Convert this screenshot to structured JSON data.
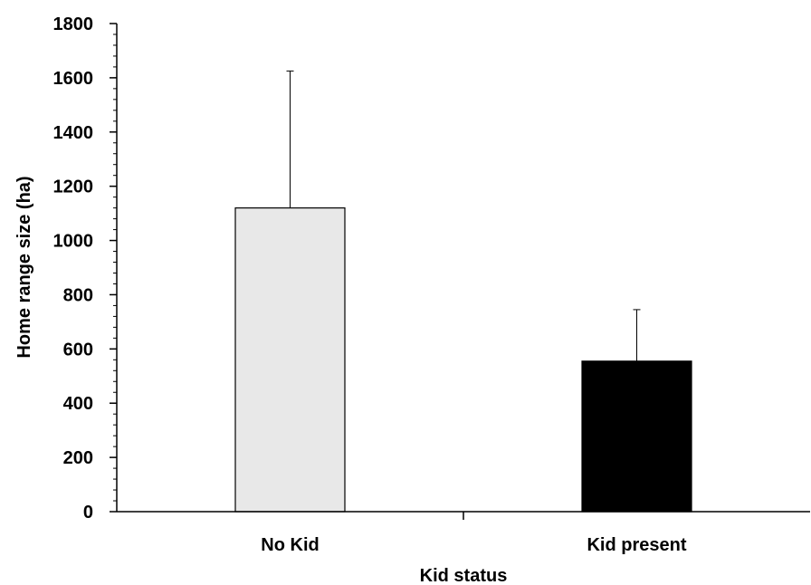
{
  "chart_data": {
    "type": "bar",
    "title": "",
    "xlabel": "Kid status",
    "ylabel": "Home range size (ha)",
    "categories": [
      "No Kid",
      "Kid present"
    ],
    "values": [
      1120,
      555
    ],
    "error_upper": [
      505,
      190
    ],
    "ylim": [
      0,
      1800
    ],
    "yticks": [
      0,
      200,
      400,
      600,
      800,
      1000,
      1200,
      1400,
      1600,
      1800
    ],
    "yminor_step": 40,
    "bar_colors": [
      "#e8e8e8",
      "#000000"
    ],
    "bar_edge_color": "#000000",
    "grid": false,
    "legend": "none"
  }
}
